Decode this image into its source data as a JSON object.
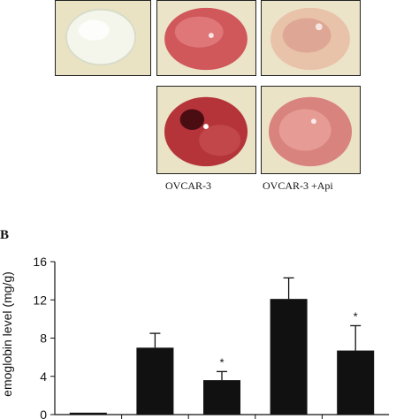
{
  "figure": {
    "panel_b_label": "B",
    "photo_labels": [
      "OVCAR-3",
      "OVCAR-3 +Api"
    ]
  },
  "chart_data": {
    "type": "bar",
    "ylabel": "emoglobin level (mg/g)",
    "ylim": [
      0,
      16
    ],
    "yticks": [
      0,
      4,
      8,
      12,
      16
    ],
    "categories": [
      "",
      "",
      "",
      "",
      ""
    ],
    "values": [
      0.2,
      7.0,
      3.6,
      12.1,
      6.7
    ],
    "errors": [
      0.05,
      1.5,
      0.9,
      2.2,
      2.6
    ],
    "significance": [
      "",
      "",
      "*",
      "",
      "*"
    ],
    "bar_color": "#111111",
    "grid": false
  }
}
